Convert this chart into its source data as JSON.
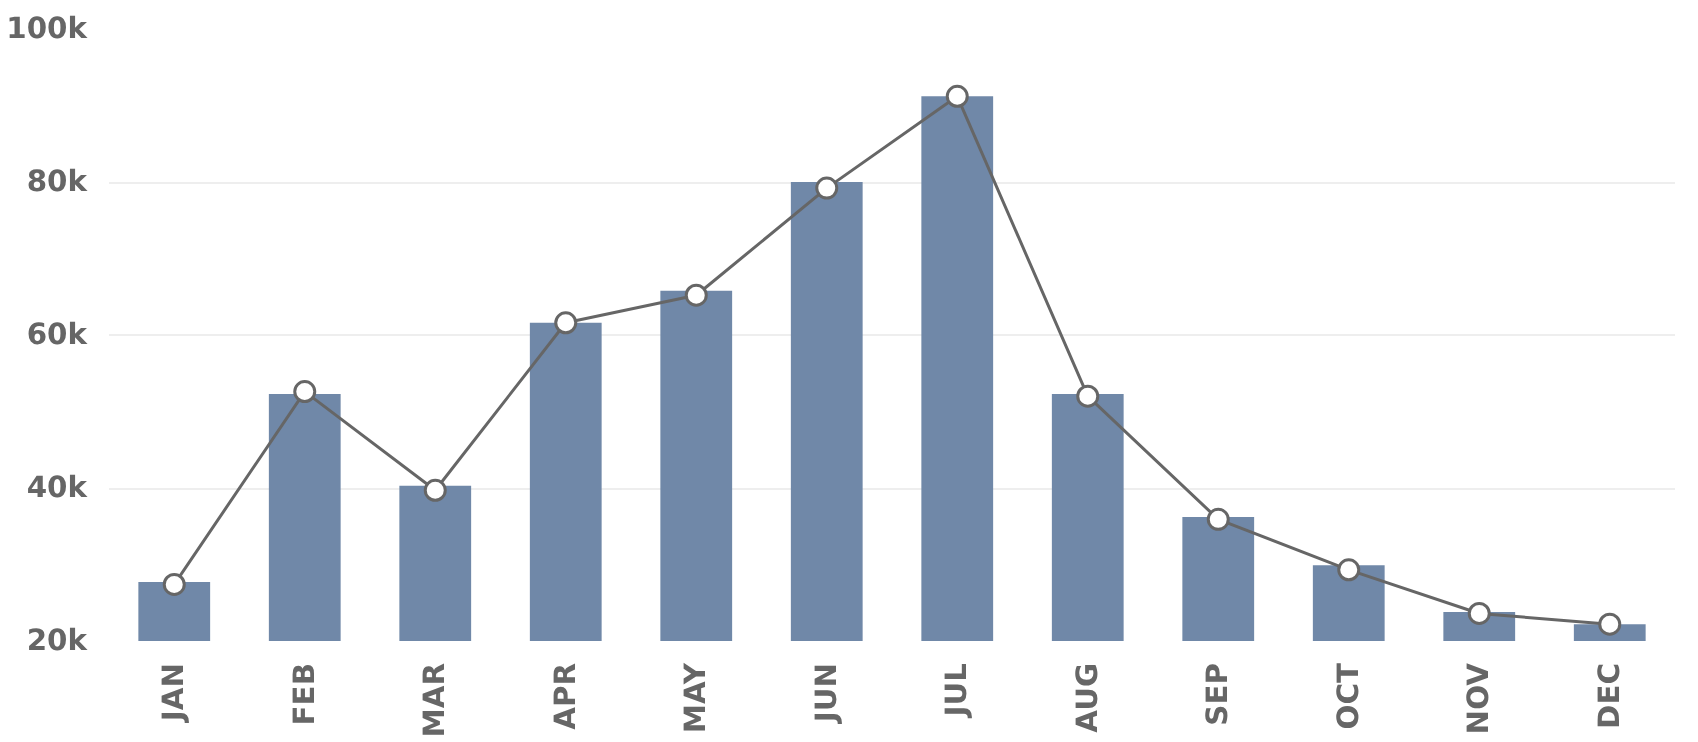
{
  "chart_data": {
    "type": "bar",
    "categories": [
      "JAN",
      "FEB",
      "MAR",
      "APR",
      "MAY",
      "JUN",
      "JUL",
      "AUG",
      "SEP",
      "OCT",
      "NOV",
      "DEC"
    ],
    "series": [
      {
        "color": "#7088a8",
        "values": [
          27700,
          52300,
          40300,
          61600,
          65800,
          80000,
          91200,
          52300,
          36200,
          29900,
          23800,
          22200
        ]
      },
      {
        "type": "line",
        "color": "#666666",
        "marker": "circle",
        "values": [
          27400,
          52600,
          39700,
          61600,
          65200,
          79200,
          91200,
          52000,
          35900,
          29300,
          23600,
          22200
        ]
      }
    ],
    "ylim": [
      20000,
      100000
    ],
    "yticks": [
      {
        "value": 20000,
        "label": "20k"
      },
      {
        "value": 40000,
        "label": "40k"
      },
      {
        "value": 60000,
        "label": "60k"
      },
      {
        "value": 80000,
        "label": "80k"
      },
      {
        "value": 100000,
        "label": "100k"
      }
    ],
    "grid": "y"
  }
}
